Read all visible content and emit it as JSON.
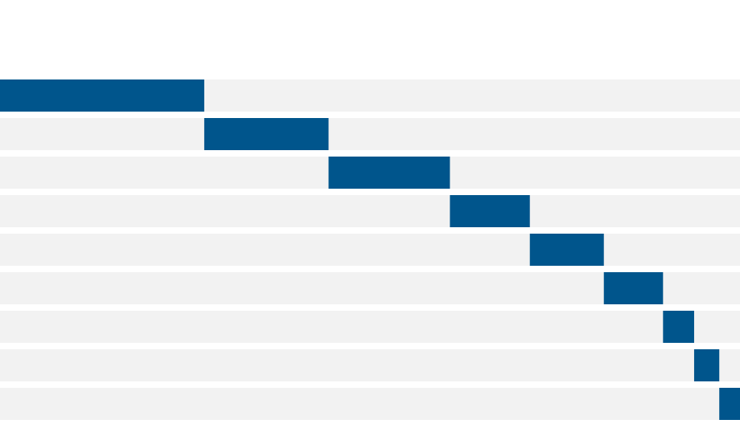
{
  "chart_data": {
    "type": "waterfall",
    "orientation": "horizontal",
    "values": [
      27.6,
      16.8,
      16.4,
      10.8,
      10,
      8,
      4.2,
      3.4,
      2.8
    ],
    "color": "#00558c",
    "track_color": "#f2f2f2",
    "xlim": [
      0,
      100
    ]
  }
}
